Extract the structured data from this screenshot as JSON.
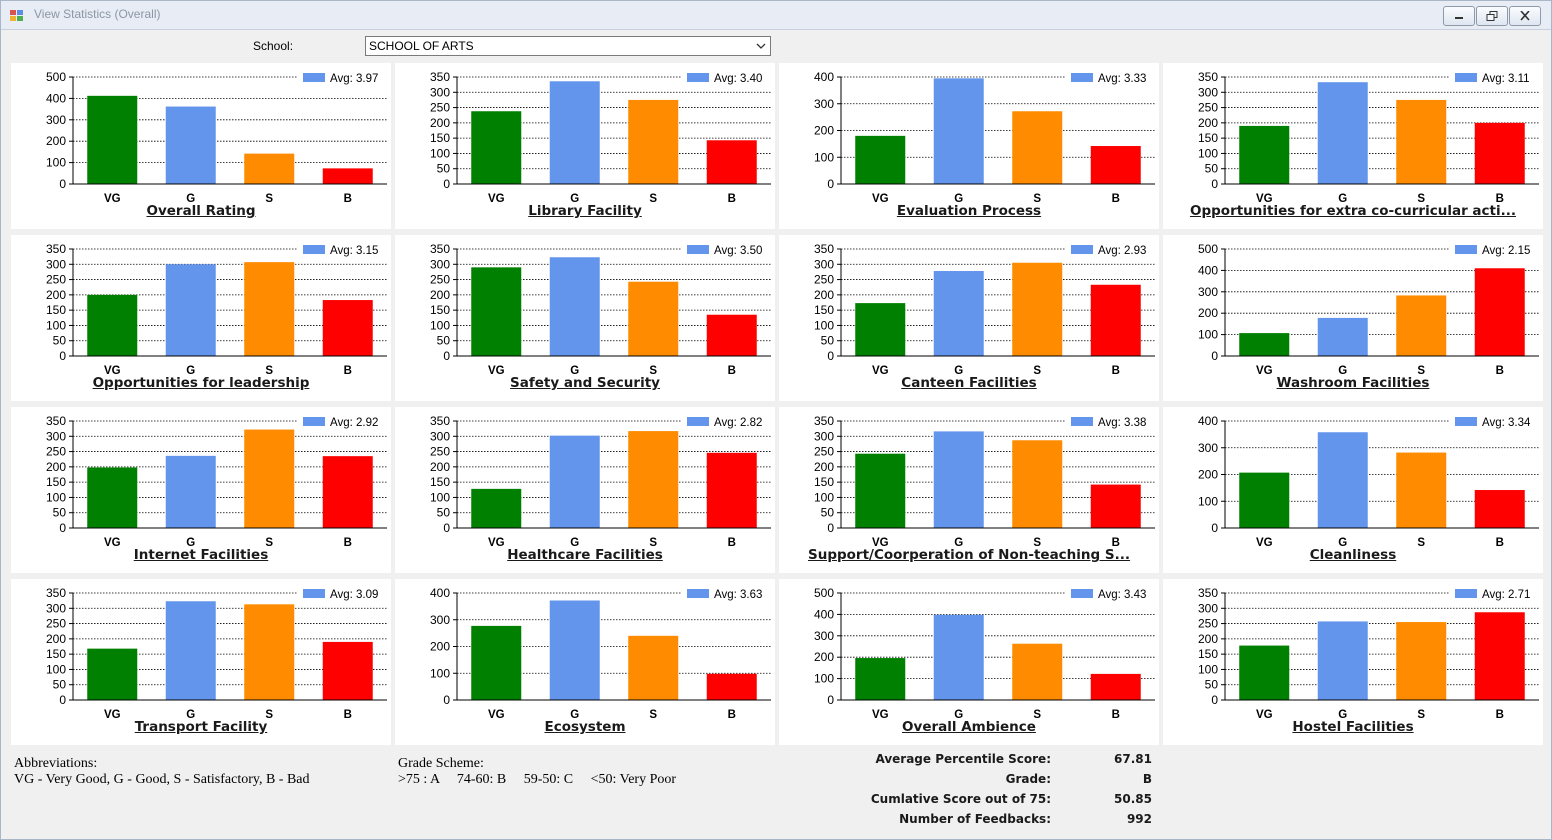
{
  "window": {
    "title": "View Statistics (Overall)",
    "icon": "app-window-icon",
    "controls": [
      "minimize-icon",
      "restore-icon",
      "close-icon"
    ]
  },
  "school": {
    "label": "School:",
    "value": "SCHOOL OF ARTS"
  },
  "legend_label_prefix": "Avg: ",
  "categories": [
    "VG",
    "G",
    "S",
    "B"
  ],
  "colors": [
    "#008000",
    "#6495ed",
    "#ff8c00",
    "#ff0000"
  ],
  "chart_data": [
    {
      "type": "bar",
      "title": "Overall Rating",
      "avg": "3.97",
      "categories": [
        "VG",
        "G",
        "S",
        "B"
      ],
      "values": [
        412,
        362,
        142,
        73
      ],
      "ylim": [
        0,
        500
      ],
      "yticks": [
        0,
        100,
        200,
        300,
        400,
        500
      ],
      "grid": "dotted",
      "legend": "top-right"
    },
    {
      "type": "bar",
      "title": "Library Facility",
      "avg": "3.40",
      "categories": [
        "VG",
        "G",
        "S",
        "B"
      ],
      "values": [
        238,
        336,
        275,
        143
      ],
      "ylim": [
        0,
        350
      ],
      "yticks": [
        0,
        50,
        100,
        150,
        200,
        250,
        300,
        350
      ],
      "grid": "dotted",
      "legend": "top-right"
    },
    {
      "type": "bar",
      "title": "Evaluation Process",
      "avg": "3.33",
      "categories": [
        "VG",
        "G",
        "S",
        "B"
      ],
      "values": [
        180,
        395,
        272,
        142
      ],
      "ylim": [
        0,
        400
      ],
      "yticks": [
        0,
        100,
        200,
        300,
        400
      ],
      "grid": "dotted",
      "legend": "top-right"
    },
    {
      "type": "bar",
      "title": "Opportunities for extra co-curricular acti...",
      "avg": "3.11",
      "categories": [
        "VG",
        "G",
        "S",
        "B"
      ],
      "values": [
        190,
        333,
        275,
        200
      ],
      "ylim": [
        0,
        350
      ],
      "yticks": [
        0,
        50,
        100,
        150,
        200,
        250,
        300,
        350
      ],
      "grid": "dotted",
      "legend": "top-right"
    },
    {
      "type": "bar",
      "title": "Opportunities for leadership",
      "avg": "3.15",
      "categories": [
        "VG",
        "G",
        "S",
        "B"
      ],
      "values": [
        200,
        300,
        307,
        183
      ],
      "ylim": [
        0,
        350
      ],
      "yticks": [
        0,
        50,
        100,
        150,
        200,
        250,
        300,
        350
      ],
      "grid": "dotted",
      "legend": "top-right"
    },
    {
      "type": "bar",
      "title": "Safety and Security",
      "avg": "3.50",
      "categories": [
        "VG",
        "G",
        "S",
        "B"
      ],
      "values": [
        290,
        323,
        243,
        135
      ],
      "ylim": [
        0,
        350
      ],
      "yticks": [
        0,
        50,
        100,
        150,
        200,
        250,
        300,
        350
      ],
      "grid": "dotted",
      "legend": "top-right"
    },
    {
      "type": "bar",
      "title": "Canteen Facilities",
      "avg": "2.93",
      "categories": [
        "VG",
        "G",
        "S",
        "B"
      ],
      "values": [
        173,
        278,
        305,
        233
      ],
      "ylim": [
        0,
        350
      ],
      "yticks": [
        0,
        50,
        100,
        150,
        200,
        250,
        300,
        350
      ],
      "grid": "dotted",
      "legend": "top-right"
    },
    {
      "type": "bar",
      "title": "Washroom Facilities",
      "avg": "2.15",
      "categories": [
        "VG",
        "G",
        "S",
        "B"
      ],
      "values": [
        107,
        178,
        283,
        410
      ],
      "ylim": [
        0,
        500
      ],
      "yticks": [
        0,
        100,
        200,
        300,
        400,
        500
      ],
      "grid": "dotted",
      "legend": "top-right"
    },
    {
      "type": "bar",
      "title": "Internet Facilities",
      "avg": "2.92",
      "categories": [
        "VG",
        "G",
        "S",
        "B"
      ],
      "values": [
        198,
        236,
        322,
        235
      ],
      "ylim": [
        0,
        350
      ],
      "yticks": [
        0,
        50,
        100,
        150,
        200,
        250,
        300,
        350
      ],
      "grid": "dotted",
      "legend": "top-right"
    },
    {
      "type": "bar",
      "title": "Healthcare Facilities",
      "avg": "2.82",
      "categories": [
        "VG",
        "G",
        "S",
        "B"
      ],
      "values": [
        128,
        302,
        317,
        246
      ],
      "ylim": [
        0,
        350
      ],
      "yticks": [
        0,
        50,
        100,
        150,
        200,
        250,
        300,
        350
      ],
      "grid": "dotted",
      "legend": "top-right"
    },
    {
      "type": "bar",
      "title": "Support/Coorperation of Non-teaching S...",
      "avg": "3.38",
      "categories": [
        "VG",
        "G",
        "S",
        "B"
      ],
      "values": [
        243,
        316,
        287,
        142
      ],
      "ylim": [
        0,
        350
      ],
      "yticks": [
        0,
        50,
        100,
        150,
        200,
        250,
        300,
        350
      ],
      "grid": "dotted",
      "legend": "top-right"
    },
    {
      "type": "bar",
      "title": "Cleanliness",
      "avg": "3.34",
      "categories": [
        "VG",
        "G",
        "S",
        "B"
      ],
      "values": [
        207,
        358,
        282,
        142
      ],
      "ylim": [
        0,
        400
      ],
      "yticks": [
        0,
        100,
        200,
        300,
        400
      ],
      "grid": "dotted",
      "legend": "top-right"
    },
    {
      "type": "bar",
      "title": "Transport Facility",
      "avg": "3.09",
      "categories": [
        "VG",
        "G",
        "S",
        "B"
      ],
      "values": [
        168,
        323,
        313,
        190
      ],
      "ylim": [
        0,
        350
      ],
      "yticks": [
        0,
        50,
        100,
        150,
        200,
        250,
        300,
        350
      ],
      "grid": "dotted",
      "legend": "top-right"
    },
    {
      "type": "bar",
      "title": "Ecosystem",
      "avg": "3.63",
      "categories": [
        "VG",
        "G",
        "S",
        "B"
      ],
      "values": [
        277,
        372,
        240,
        98
      ],
      "ylim": [
        0,
        400
      ],
      "yticks": [
        0,
        100,
        200,
        300,
        400
      ],
      "grid": "dotted",
      "legend": "top-right"
    },
    {
      "type": "bar",
      "title": "Overall Ambience",
      "avg": "3.43",
      "categories": [
        "VG",
        "G",
        "S",
        "B"
      ],
      "values": [
        196,
        398,
        263,
        122
      ],
      "ylim": [
        0,
        500
      ],
      "yticks": [
        0,
        100,
        200,
        300,
        400,
        500
      ],
      "grid": "dotted",
      "legend": "top-right"
    },
    {
      "type": "bar",
      "title": "Hostel Facilities",
      "avg": "2.71",
      "categories": [
        "VG",
        "G",
        "S",
        "B"
      ],
      "values": [
        178,
        257,
        255,
        287
      ],
      "ylim": [
        0,
        350
      ],
      "yticks": [
        0,
        50,
        100,
        150,
        200,
        250,
        300,
        350
      ],
      "grid": "dotted",
      "legend": "top-right"
    }
  ],
  "abbreviations": {
    "heading": "Abbreviations:",
    "text": "VG - Very Good, G - Good, S - Satisfactory, B - Bad"
  },
  "grade_scheme": {
    "heading": "Grade Scheme:",
    "text": ">75 : A     74-60: B     59-50: C     <50: Very Poor"
  },
  "summary": [
    {
      "label": "Average Percentile Score:",
      "value": "67.81"
    },
    {
      "label": "Grade:",
      "value": "B"
    },
    {
      "label": "Cumlative Score out of 75:",
      "value": "50.85"
    },
    {
      "label": "Number of Feedbacks:",
      "value": "992"
    }
  ]
}
